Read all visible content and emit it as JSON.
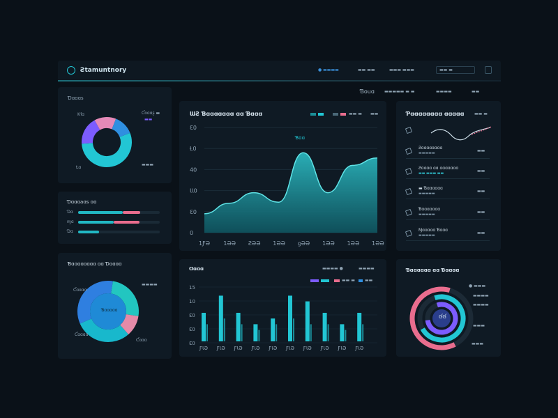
{
  "colors": {
    "background": "#0a1118",
    "panel": "#0f1a24",
    "cyan": "#22c6d4",
    "teal": "#1b8f98",
    "blue": "#2f7fe0",
    "purple": "#7c5cff",
    "pink": "#e96d8e"
  },
  "header": {
    "logo_icon": "app-logo-icon",
    "title": "Ƨtamuntnory",
    "nav_status": "● ▬▬▬▬",
    "nav_1": "▬▬ ▬▬",
    "nav_2": "▬▬▬ ▬▬▬",
    "search_value": "▬▬ ▬",
    "menu_icon": "menu-grid-icon"
  },
  "subtabs": [
    "Ɓouɑ",
    "▬▬▬▬▬ ▬ ▬",
    "▬▬▬▬",
    "▬▬"
  ],
  "donut1": {
    "title": "Ɗɑɑɑs",
    "labels": [
      "Ƙlɑ",
      "Ƈoɑɑʂ ▬",
      "▬▬",
      "Ɫɑ",
      "▬▬▬"
    ],
    "segments": [
      {
        "name": "cyan",
        "value": 55,
        "color": "#22c6d4"
      },
      {
        "name": "purple",
        "value": 18,
        "color": "#7c5cff"
      },
      {
        "name": "pink",
        "value": 14,
        "color": "#e58ab8"
      },
      {
        "name": "blue",
        "value": 13,
        "color": "#2f8fe0"
      }
    ]
  },
  "bars_panel": {
    "title": "Ɗɑɑɑaɑs ɑɑ",
    "rows": [
      {
        "label": "Ɗɑ",
        "teal": 0.73,
        "pink": 0.21
      },
      {
        "label": "ɱɑ",
        "teal": 0.58,
        "pink": 0.32
      },
      {
        "label": "Ɗɑ",
        "teal": 0.34,
        "pink": 0
      }
    ]
  },
  "donut2": {
    "title": "Ɓɑɑɑɑɑɑɑɑ ɑɑ Ɗɑɑɑɑ",
    "labels": [
      "Ƈɑɑɑɑ",
      "▬▬▬▬",
      "Ƈɑɑɑɑ",
      "Ƈɑɑɑ"
    ],
    "center_label": "Ɓɑɑɑɑɑ",
    "segments": [
      {
        "name": "teal",
        "value": 25,
        "color": "#22c6c0"
      },
      {
        "name": "pink",
        "value": 11,
        "color": "#e58aa8"
      },
      {
        "name": "cyan",
        "value": 30,
        "color": "#18b8cc"
      },
      {
        "name": "blue",
        "value": 34,
        "color": "#2f7fe0"
      }
    ]
  },
  "area_chart": {
    "title": "ƜƧ Ɓɑɑɑɑɑɑɑ ɑɑ Ɓɑɑɑ",
    "legend": [
      "▬▬",
      "▬▬",
      "▬▬ ▬",
      "▬▬"
    ],
    "peak_label": "Ɓɑɑ"
  },
  "bar_chart": {
    "title": "Ɑɑɑɑ",
    "filter_1": "▬▬▬▬ ●",
    "filter_2": "▬▬▬▬",
    "legend": [
      "▬▬",
      "▬▬ ▬",
      "▬▬"
    ]
  },
  "list_panel": {
    "title": "Ƥɑɑɑɑɑɑɑɑ ɑɑɑɑɑ",
    "header_right": "▬▬ ▬",
    "items": [
      {
        "title": "▬▬▬▬▬▬▬",
        "sub": "",
        "value": ""
      },
      {
        "title": "Ƨɑɑɑɑɑɑɑɑ",
        "sub": "▬▬▬▬▬",
        "value": "▬▬"
      },
      {
        "title": "Ƨɑɑɑɑ ɑɑ ɑɑɑɑɑɑɑ",
        "sub": "▬▬ ▬▬▬ ▬▬",
        "value": "▬▬"
      },
      {
        "title": "▬ Ɓɑɑɑɑɑɑ",
        "sub": "▬▬▬▬▬",
        "value": "▬▬"
      },
      {
        "title": "Ɓɑɑɑɑɑɑɑ",
        "sub": "▬▬▬▬▬",
        "value": "▬▬"
      },
      {
        "title": "Ɱɑɑɑɑɑ Ɓɑɑɑ",
        "sub": "▬▬▬▬▬",
        "value": "▬▬"
      }
    ]
  },
  "ring_chart": {
    "title": "Ɓɑɑɑɑɑɑ ɑɑ Ɓɑɑɑɑ",
    "center_label": "ƓƓ",
    "labels": [
      "● ▬▬▬",
      "▬▬▬▬",
      "▬▬▬▬",
      "▬▬▬",
      "▬▬▬"
    ],
    "rings": [
      {
        "name": "outer",
        "value": 0.62,
        "color": "#e96d8e"
      },
      {
        "name": "middle",
        "value": 0.72,
        "color": "#22c6d4"
      },
      {
        "name": "inner",
        "value": 0.78,
        "color": "#7c5cff"
      }
    ]
  },
  "chart_data": [
    {
      "type": "area",
      "title": "ƜƧ Ɓɑɑɑɑɑɑɑ ɑɑ Ɓɑɑɑ",
      "x": [
        "1ƑƏ",
        "1ƏƏ",
        "ƧƏƏ",
        "1ƏƏ",
        "ƍƏƏ",
        "1ƏƏ",
        "1ƏƏ",
        "1ƏƏ"
      ],
      "y_ticks": [
        "Ɛ0",
        "Ɫ0",
        "40",
        "ƖƖ0",
        "Ɛ0",
        "0"
      ],
      "values": [
        18,
        28,
        38,
        29,
        76,
        38,
        64,
        71
      ],
      "ylim": [
        0,
        100
      ]
    },
    {
      "type": "bar",
      "title": "Ɑɑɑɑ",
      "categories": [
        "ƑƖƏ",
        "ƑƖƏ",
        "ƑƖƏ",
        "ƑƖƏ",
        "ƑƖƏ",
        "ƑƖƏ",
        "ƑƖƏ",
        "ƑƖƏ",
        "ƑƖƏ",
        "ƑƖƏ"
      ],
      "y_ticks": [
        "15",
        "10",
        "Ɛ0",
        "Ɛ0",
        "Ɛ0"
      ],
      "series": [
        {
          "values": [
            5,
            8,
            5,
            3,
            4,
            8,
            7,
            5,
            3,
            5
          ]
        },
        {
          "values": [
            3,
            4,
            3,
            2,
            3,
            4,
            3,
            3,
            2,
            3
          ]
        }
      ],
      "ylim": [
        0,
        10
      ]
    }
  ]
}
